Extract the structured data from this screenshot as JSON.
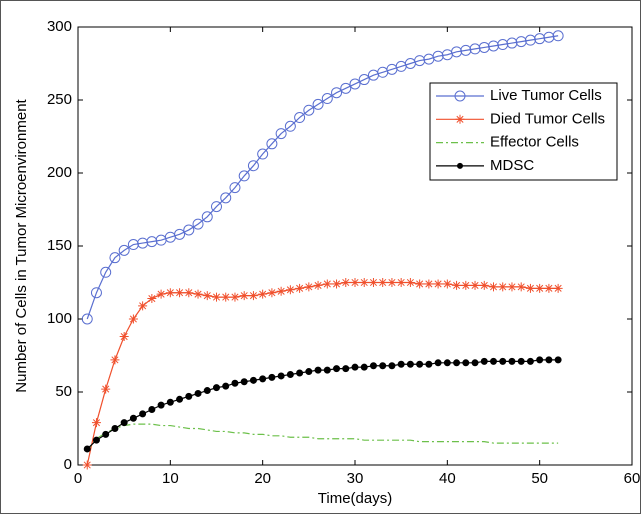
{
  "chart_data": {
    "type": "line",
    "xlabel": "Time(days)",
    "ylabel": "Number of Cells in Tumor Microenvironment",
    "x": [
      1,
      2,
      3,
      4,
      5,
      6,
      7,
      8,
      9,
      10,
      11,
      12,
      13,
      14,
      15,
      16,
      17,
      18,
      19,
      20,
      21,
      22,
      23,
      24,
      25,
      26,
      27,
      28,
      29,
      30,
      31,
      32,
      33,
      34,
      35,
      36,
      37,
      38,
      39,
      40,
      41,
      42,
      43,
      44,
      45,
      46,
      47,
      48,
      49,
      50,
      51,
      52
    ],
    "series": [
      {
        "name": "Live Tumor Cells",
        "color": "#5a6fd0",
        "marker": "circle",
        "dash": "solid",
        "values": [
          100,
          118,
          132,
          142,
          147,
          151,
          152,
          153,
          154,
          156,
          158,
          161,
          165,
          170,
          177,
          183,
          190,
          198,
          205,
          213,
          220,
          227,
          232,
          238,
          243,
          247,
          251,
          255,
          258,
          261,
          264,
          267,
          269,
          271,
          273,
          275,
          277,
          278,
          280,
          281,
          283,
          284,
          285,
          286,
          287,
          288,
          289,
          290,
          291,
          292,
          293,
          294
        ]
      },
      {
        "name": "Died Tumor Cells",
        "color": "#f0502d",
        "marker": "asterisk",
        "dash": "solid",
        "values": [
          0,
          29,
          52,
          72,
          88,
          100,
          109,
          114,
          117,
          118,
          118,
          118,
          117,
          116,
          115,
          115,
          115,
          116,
          116,
          117,
          118,
          119,
          120,
          121,
          122,
          123,
          124,
          124,
          125,
          125,
          125,
          125,
          125,
          125,
          125,
          125,
          124,
          124,
          124,
          124,
          123,
          123,
          123,
          123,
          122,
          122,
          122,
          122,
          121,
          121,
          121,
          121
        ]
      },
      {
        "name": "Effector Cells",
        "color": "#6cc04a",
        "marker": "none",
        "dash": "dashdot",
        "values": [
          10,
          18,
          22,
          25,
          27,
          28,
          28,
          28,
          27,
          27,
          26,
          25,
          25,
          24,
          23,
          23,
          22,
          22,
          21,
          21,
          20,
          20,
          19,
          19,
          19,
          18,
          18,
          18,
          18,
          18,
          17,
          17,
          17,
          17,
          17,
          17,
          16,
          16,
          16,
          16,
          16,
          16,
          16,
          16,
          15,
          15,
          15,
          15,
          15,
          15,
          15,
          15
        ]
      },
      {
        "name": "MDSC",
        "color": "#000000",
        "marker": "dot",
        "dash": "solid",
        "values": [
          11,
          17,
          21,
          25,
          29,
          32,
          35,
          38,
          41,
          43,
          45,
          47,
          49,
          51,
          53,
          54,
          56,
          57,
          58,
          59,
          60,
          61,
          62,
          63,
          64,
          65,
          65,
          66,
          66,
          67,
          67,
          68,
          68,
          68,
          69,
          69,
          69,
          69,
          70,
          70,
          70,
          70,
          70,
          71,
          71,
          71,
          71,
          71,
          71,
          72,
          72,
          72
        ]
      }
    ],
    "xlim": [
      0,
      60
    ],
    "xticks": [
      0,
      10,
      20,
      30,
      40,
      50,
      60
    ],
    "ylim": [
      0,
      300
    ],
    "yticks": [
      0,
      50,
      100,
      150,
      200,
      250,
      300
    ],
    "legend": "northeast"
  }
}
